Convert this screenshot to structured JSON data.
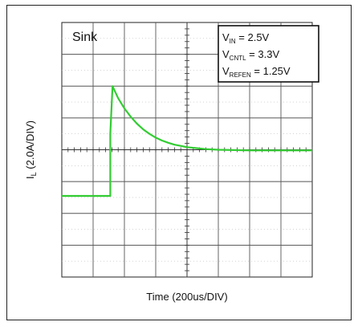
{
  "chart_data": {
    "type": "line",
    "title": "Sink",
    "xlabel": "Time (200us/DIV)",
    "ylabel_main": "I",
    "ylabel_sub": "L",
    "ylabel_rest": " (2.0A/DIV)",
    "divisions": {
      "x": 8,
      "y": 8
    },
    "grid": true,
    "legend_placement": "top-right",
    "annotations": [
      {
        "main": "V",
        "sub": "IN",
        "rest": " = 2.5V"
      },
      {
        "main": "V",
        "sub": "CNTL",
        "rest": " = 3.3V"
      },
      {
        "main": "V",
        "sub": "REFEN",
        "rest": " = 1.25V"
      }
    ],
    "xlim": [
      0,
      8
    ],
    "ylim": [
      0,
      8
    ],
    "series": [
      {
        "color": "#33cc33",
        "x": [
          0,
          1.55,
          1.55,
          1.62,
          1.8,
          2.0,
          2.2,
          2.4,
          2.6,
          2.8,
          3.0,
          3.2,
          3.4,
          3.6,
          3.8,
          4.0,
          4.3,
          4.6,
          5.0,
          5.5,
          6.0,
          7.0,
          8.0
        ],
        "y": [
          2.55,
          2.55,
          4.5,
          6.0,
          5.62,
          5.3,
          5.04,
          4.82,
          4.64,
          4.5,
          4.38,
          4.29,
          4.22,
          4.16,
          4.12,
          4.08,
          4.05,
          4.02,
          4.0,
          3.99,
          3.98,
          3.98,
          3.98
        ]
      }
    ]
  }
}
